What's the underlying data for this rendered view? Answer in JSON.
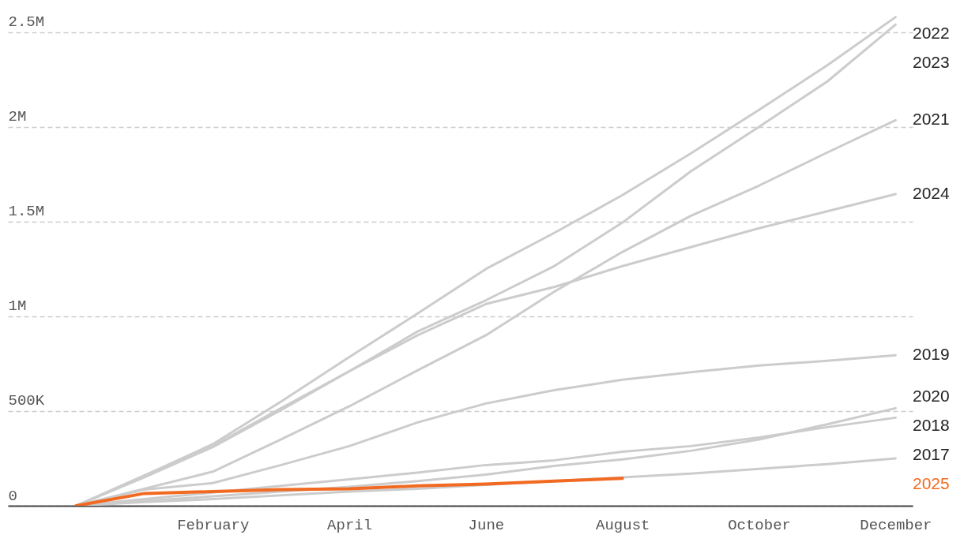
{
  "chart_data": {
    "type": "line",
    "categories": [
      null,
      null,
      "February",
      null,
      "April",
      null,
      "June",
      null,
      "August",
      null,
      "October",
      null,
      "December"
    ],
    "ylim": [
      0,
      2670000
    ],
    "yticks": [
      0,
      {
        "value": 500000,
        "label": "500K"
      },
      {
        "value": 1000000,
        "label": "1M"
      },
      {
        "value": 1500000,
        "label": "1.5M"
      },
      {
        "value": 2000000,
        "label": "2M"
      },
      {
        "value": 2500000,
        "label": "2.5M"
      }
    ],
    "grid": "y",
    "series": [
      {
        "name": "2022",
        "color": "#cccccc",
        "values": [
          0,
          160000,
          325000,
          550000,
          785000,
          1015000,
          1250000,
          1440000,
          1640000,
          1860000,
          2090000,
          2325000,
          2580000
        ]
      },
      {
        "name": "2023",
        "color": "#cccccc",
        "values": [
          0,
          150000,
          310000,
          505000,
          710000,
          920000,
          1085000,
          1265000,
          1495000,
          1765000,
          2000000,
          2240000,
          2540000
        ]
      },
      {
        "name": "2021",
        "color": "#cccccc",
        "values": [
          0,
          90000,
          180000,
          350000,
          525000,
          715000,
          900000,
          1130000,
          1340000,
          1530000,
          1690000,
          1865000,
          2035000
        ]
      },
      {
        "name": "2024",
        "color": "#cccccc",
        "values": [
          0,
          160000,
          315000,
          515000,
          710000,
          900000,
          1065000,
          1155000,
          1265000,
          1365000,
          1465000,
          1555000,
          1645000
        ]
      },
      {
        "name": "2019",
        "color": "#cccccc",
        "values": [
          0,
          85000,
          120000,
          215000,
          315000,
          440000,
          540000,
          610000,
          665000,
          705000,
          740000,
          765000,
          795000
        ]
      },
      {
        "name": "2020",
        "color": "#cccccc",
        "values": [
          0,
          25000,
          50000,
          75000,
          100000,
          130000,
          165000,
          210000,
          245000,
          290000,
          350000,
          430000,
          515000
        ]
      },
      {
        "name": "2018",
        "color": "#cccccc",
        "values": [
          0,
          35000,
          70000,
          105000,
          140000,
          175000,
          215000,
          240000,
          285000,
          315000,
          360000,
          415000,
          465000
        ]
      },
      {
        "name": "2017",
        "color": "#cccccc",
        "values": [
          0,
          20000,
          35000,
          55000,
          75000,
          90000,
          110000,
          130000,
          150000,
          170000,
          195000,
          220000,
          250000
        ]
      },
      {
        "name": "2025",
        "color": "#f26a21",
        "values": [
          0,
          65000,
          75000,
          85000,
          90000,
          105000,
          115000,
          130000,
          145000,
          null,
          null,
          null,
          null
        ]
      }
    ]
  }
}
